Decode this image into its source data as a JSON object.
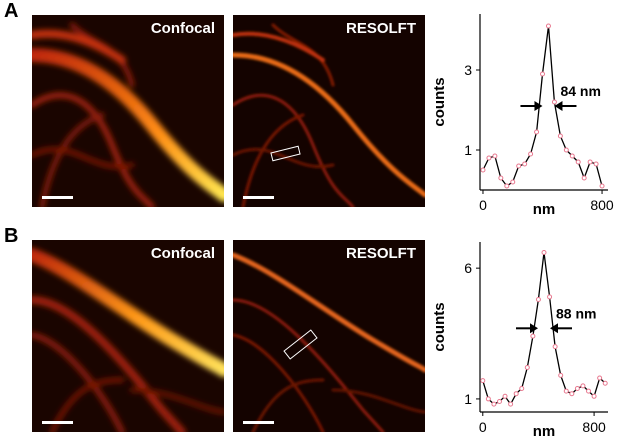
{
  "panels": [
    {
      "letter": "A",
      "left_label": "Confocal",
      "right_label": "RESOLFT"
    },
    {
      "letter": "B",
      "left_label": "Confocal",
      "right_label": "RESOLFT"
    }
  ],
  "colors": {
    "image_background": "#1a0500",
    "line": "#000000",
    "points": "#e8788f"
  },
  "chart_data": [
    {
      "type": "line",
      "xlabel": "nm",
      "ylabel": "counts",
      "xticks": [
        "0",
        "800"
      ],
      "yticks": [
        "1",
        "3"
      ],
      "xlim": [
        -20,
        840
      ],
      "ylim": [
        0,
        4.4
      ],
      "annotation": "84 nm",
      "x": [
        0,
        40,
        80,
        120,
        160,
        200,
        240,
        280,
        320,
        360,
        400,
        440,
        480,
        520,
        560,
        600,
        640,
        680,
        720,
        760,
        800
      ],
      "y": [
        0.5,
        0.8,
        0.85,
        0.3,
        0.1,
        0.2,
        0.6,
        0.65,
        0.9,
        1.45,
        2.9,
        4.1,
        2.2,
        1.35,
        1.0,
        0.85,
        0.7,
        0.3,
        0.7,
        0.65,
        0.1
      ]
    },
    {
      "type": "line",
      "xlabel": "nm",
      "ylabel": "counts",
      "xticks": [
        "0",
        "800"
      ],
      "yticks": [
        "1",
        "6"
      ],
      "xlim": [
        -20,
        900
      ],
      "ylim": [
        0.5,
        7.0
      ],
      "annotation": "88 nm",
      "x": [
        0,
        40,
        80,
        120,
        160,
        200,
        240,
        280,
        320,
        360,
        400,
        440,
        480,
        520,
        560,
        600,
        640,
        680,
        720,
        760,
        800,
        840,
        880
      ],
      "y": [
        1.7,
        1.0,
        0.8,
        0.9,
        1.1,
        0.8,
        1.2,
        1.4,
        2.2,
        3.4,
        4.8,
        6.6,
        4.9,
        3.0,
        1.9,
        1.3,
        1.2,
        1.4,
        1.5,
        1.3,
        1.1,
        1.8,
        1.6
      ]
    }
  ]
}
